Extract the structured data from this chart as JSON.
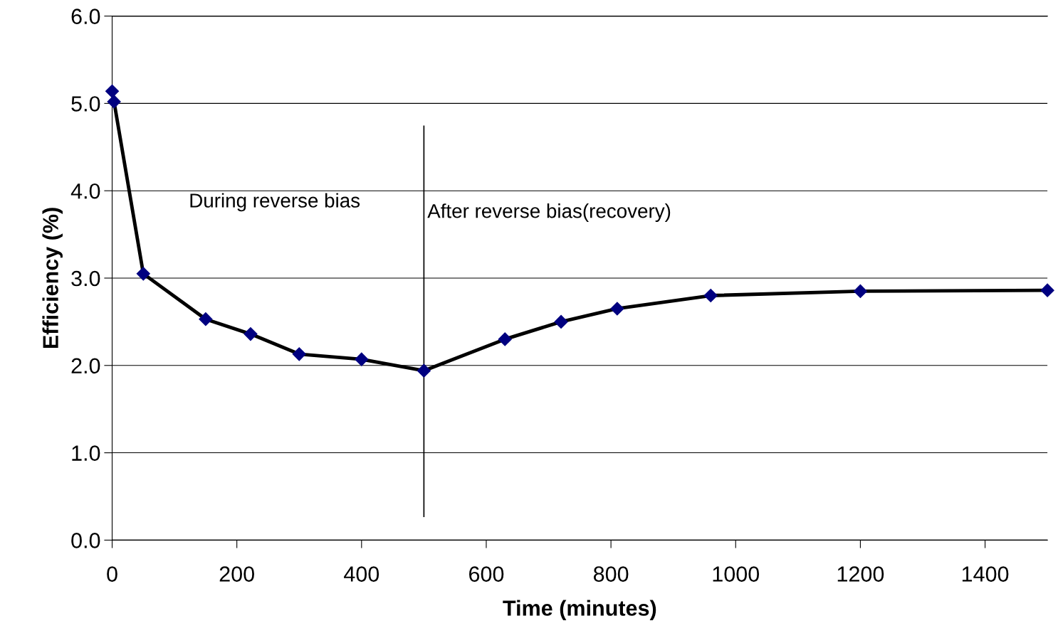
{
  "chart_data": {
    "type": "line",
    "xlabel": "Time (minutes)",
    "ylabel": "Efficiency (%)",
    "x": [
      0,
      3,
      50,
      150,
      222,
      300,
      400,
      500,
      630,
      720,
      810,
      960,
      1200,
      1500
    ],
    "series": [
      {
        "color": "#000080",
        "values": [
          5.14,
          5.02,
          3.05,
          2.53,
          2.36,
          2.13,
          2.07,
          1.94,
          2.3,
          2.5,
          2.65,
          2.8,
          2.85,
          2.86
        ]
      }
    ],
    "xlim": [
      0,
      1500
    ],
    "xticks": [
      0,
      200,
      400,
      600,
      800,
      1000,
      1200,
      1400
    ],
    "ylim": [
      0,
      6
    ],
    "yticks": [
      {
        "value": 0,
        "label": "0.0"
      },
      {
        "value": 1,
        "label": "1.0"
      },
      {
        "value": 2,
        "label": "2.0"
      },
      {
        "value": 3,
        "label": "3.0"
      },
      {
        "value": 4,
        "label": "4.0"
      },
      {
        "value": 5,
        "label": "5.0"
      },
      {
        "value": 6,
        "label": "6.0"
      }
    ],
    "ref_lines": [
      {
        "axis": "x",
        "value": 500,
        "color": "#000000"
      }
    ],
    "annotations": [
      "During reverse bias",
      "After reverse bias(recovery)"
    ],
    "grid": "y",
    "marker": "diamond",
    "line_style": "solid"
  }
}
